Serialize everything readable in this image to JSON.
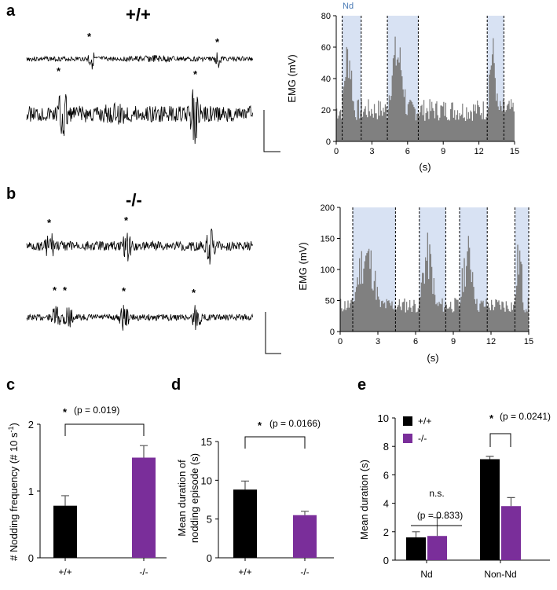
{
  "panels": {
    "a": {
      "letter": "a",
      "genotype": "+/+",
      "nd_label": "Nd"
    },
    "b": {
      "letter": "b",
      "genotype": "-/-"
    },
    "c": {
      "letter": "c"
    },
    "d": {
      "letter": "d"
    },
    "e": {
      "letter": "e"
    }
  },
  "trace_marker": "*",
  "colors": {
    "wt": "#000000",
    "ko": "#7a2e9a",
    "emg": "#808080",
    "nd_band": "#d8e2f3",
    "nd_text": "#4a7ab5"
  },
  "chart_data": [
    {
      "id": "a-emg",
      "type": "area",
      "title": "",
      "xlabel": "(s)",
      "ylabel": "EMG (mV)",
      "xlim": [
        0,
        15
      ],
      "ylim": [
        0,
        80
      ],
      "xticks": [
        0,
        3,
        6,
        9,
        12,
        15
      ],
      "yticks": [
        0,
        20,
        40,
        60,
        80
      ],
      "nd_intervals": [
        [
          0.5,
          2.1
        ],
        [
          4.3,
          6.9
        ],
        [
          12.7,
          14.1
        ]
      ],
      "series_seed": 7,
      "baseline": [
        13,
        27
      ],
      "peak_level": [
        55,
        70
      ]
    },
    {
      "id": "b-emg",
      "type": "area",
      "title": "",
      "xlabel": "(s)",
      "ylabel": "EMG (mV)",
      "xlim": [
        0,
        15
      ],
      "ylim": [
        0,
        200
      ],
      "xticks": [
        0,
        3,
        6,
        9,
        12,
        15
      ],
      "yticks": [
        0,
        50,
        100,
        150,
        200
      ],
      "nd_intervals": [
        [
          1.0,
          4.4
        ],
        [
          6.3,
          8.4
        ],
        [
          9.5,
          11.7
        ],
        [
          13.9,
          15.0
        ]
      ],
      "series_seed": 11,
      "baseline": [
        30,
        55
      ],
      "peak_level": [
        110,
        160
      ]
    },
    {
      "id": "c",
      "type": "bar",
      "ylabel": "# Nodding frequency (# 10 s",
      "ylabel_sup": "-1",
      "ylabel_close": ")",
      "categories": [
        "+/+",
        "-/-"
      ],
      "values": [
        0.78,
        1.5
      ],
      "errors": [
        0.15,
        0.18
      ],
      "ylim": [
        0,
        2
      ],
      "yticks": [
        "0",
        "1",
        "2"
      ],
      "significance": {
        "marker": "*",
        "text": "(p = 0.019)"
      }
    },
    {
      "id": "d",
      "type": "bar",
      "ylabel_line1": "Mean duration of",
      "ylabel_line2": "nodding episode (s)",
      "categories": [
        "+/+",
        "-/-"
      ],
      "values": [
        8.8,
        5.5
      ],
      "errors": [
        1.1,
        0.5
      ],
      "ylim": [
        0,
        15
      ],
      "yticks": [
        "0",
        "5",
        "10",
        "15"
      ],
      "significance": {
        "marker": "*",
        "text": "(p = 0.0166)"
      }
    },
    {
      "id": "e",
      "type": "bar",
      "ylabel": "Mean duration (s)",
      "categories": [
        "Nd",
        "Non-Nd"
      ],
      "series": [
        {
          "name": "+/+",
          "values": [
            1.6,
            7.1
          ],
          "errors": [
            0.4,
            0.2
          ]
        },
        {
          "name": "-/-",
          "values": [
            1.7,
            3.8
          ],
          "errors": [
            1.3,
            0.6
          ]
        }
      ],
      "ylim": [
        0,
        10
      ],
      "yticks": [
        "0",
        "2",
        "4",
        "6",
        "8",
        "10"
      ],
      "legend": [
        "+/+",
        "-/-"
      ],
      "ns_text": "n.s.",
      "ns_p": "(p = 0.833)",
      "significance": {
        "marker": "*",
        "text": "(p = 0.0241)"
      }
    }
  ]
}
